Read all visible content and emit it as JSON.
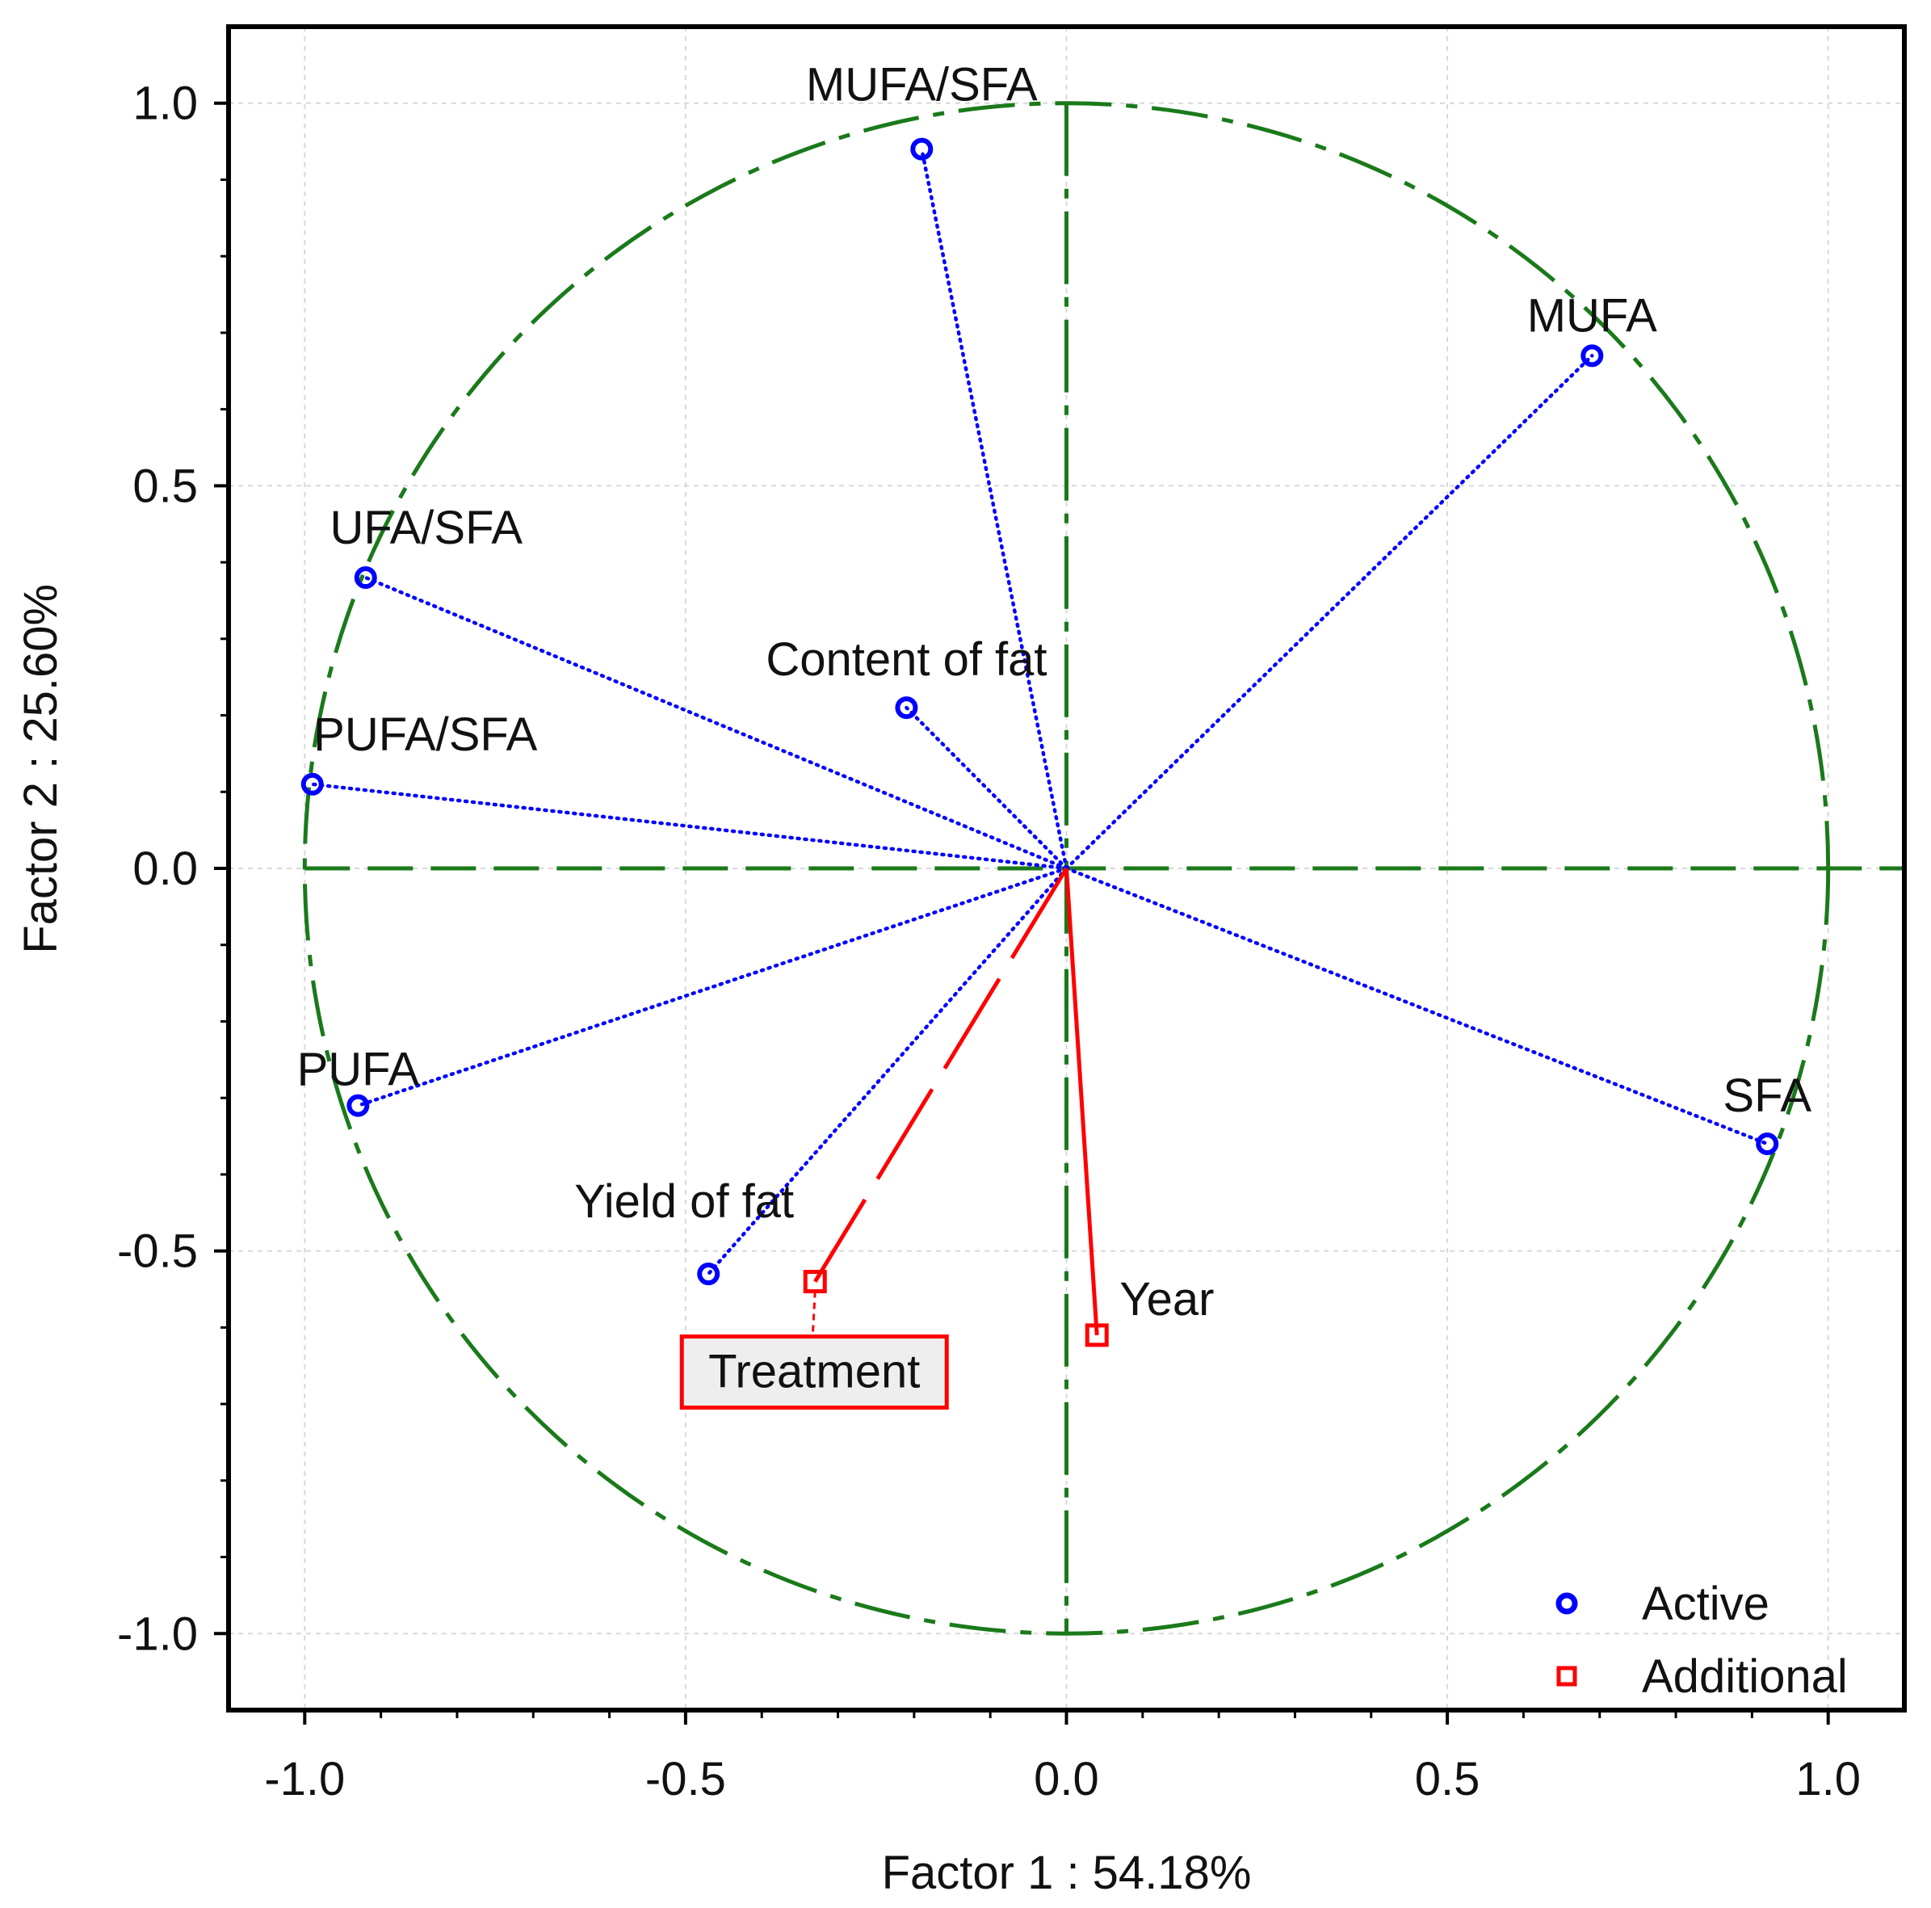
{
  "chart_data": {
    "type": "scatter",
    "title": "",
    "xlabel": "Factor 1 : 54.18%",
    "ylabel": "Factor 2 : 25.60%",
    "xlim": [
      -1.1,
      1.1
    ],
    "ylim": [
      -1.1,
      1.1
    ],
    "xticks": [
      -1.0,
      -0.5,
      0.0,
      0.5,
      1.0
    ],
    "yticks": [
      -1.0,
      -0.5,
      0.0,
      0.5,
      1.0
    ],
    "xtick_labels": [
      "-1.0",
      "-0.5",
      "0.0",
      "0.5",
      "1.0"
    ],
    "ytick_labels": [
      "-1.0",
      "-0.5",
      "0.0",
      "0.5",
      "1.0"
    ],
    "grid": true,
    "unit_circle": true,
    "colors": {
      "active": "#0000ff",
      "additional": "#ff0000",
      "circle": "#1a7a1a"
    },
    "series": [
      {
        "name": "Active",
        "marker": "circle",
        "points": [
          {
            "label": "MUFA/SFA",
            "x": -0.19,
            "y": 0.94
          },
          {
            "label": "MUFA",
            "x": 0.69,
            "y": 0.67
          },
          {
            "label": "UFA/SFA",
            "x": -0.92,
            "y": 0.38
          },
          {
            "label": "Content of fat",
            "x": -0.21,
            "y": 0.21
          },
          {
            "label": "PUFA/SFA",
            "x": -0.99,
            "y": 0.11
          },
          {
            "label": "PUFA",
            "x": -0.93,
            "y": -0.31
          },
          {
            "label": "SFA",
            "x": 0.92,
            "y": -0.36
          },
          {
            "label": "Yield of fat",
            "x": -0.47,
            "y": -0.53
          }
        ]
      },
      {
        "name": "Additional",
        "marker": "square",
        "points": [
          {
            "label": "Treatment",
            "x": -0.33,
            "y": -0.54
          },
          {
            "label": "Year",
            "x": 0.04,
            "y": -0.61
          }
        ]
      }
    ],
    "legend": {
      "position": "bottom-right",
      "entries": [
        "Active",
        "Additional"
      ]
    }
  }
}
